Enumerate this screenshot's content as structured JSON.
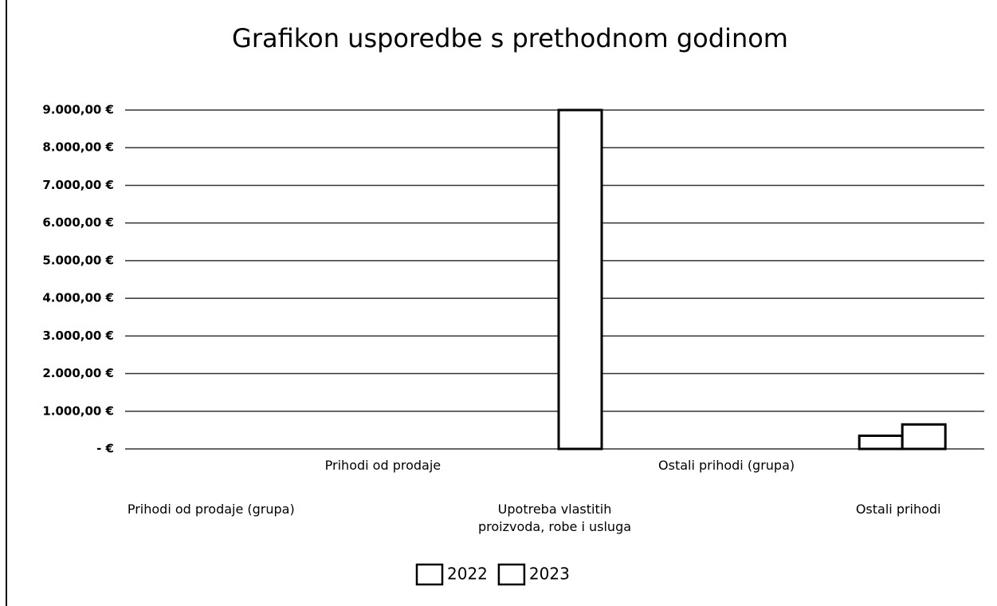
{
  "chart_data": {
    "type": "bar",
    "title": "Grafikon usporedbe s prethodnom godinom",
    "categories": [
      "Prihodi od prodaje (grupa)",
      "Prihodi od prodaje",
      "Upotreba vlastitih proizvoda, robe i usluga",
      "Ostali prihodi (grupa)",
      "Ostali prihodi"
    ],
    "series": [
      {
        "name": "2022",
        "color": "#ffffff",
        "values": [
          0,
          0,
          0,
          0,
          350
        ]
      },
      {
        "name": "2023",
        "color": "#ffffff",
        "values": [
          0,
          0,
          9000,
          0,
          650
        ]
      }
    ],
    "ylim": [
      0,
      9000
    ],
    "yticks": [
      {
        "value": 0,
        "label": "- €"
      },
      {
        "value": 1000,
        "label": "1.000,00 €"
      },
      {
        "value": 2000,
        "label": "2.000,00 €"
      },
      {
        "value": 3000,
        "label": "3.000,00 €"
      },
      {
        "value": 4000,
        "label": "4.000,00 €"
      },
      {
        "value": 5000,
        "label": "5.000,00 €"
      },
      {
        "value": 6000,
        "label": "6.000,00 €"
      },
      {
        "value": 7000,
        "label": "7.000,00 €"
      },
      {
        "value": 8000,
        "label": "8.000,00 €"
      },
      {
        "value": 9000,
        "label": "9.000,00 €"
      }
    ],
    "grid": true
  }
}
